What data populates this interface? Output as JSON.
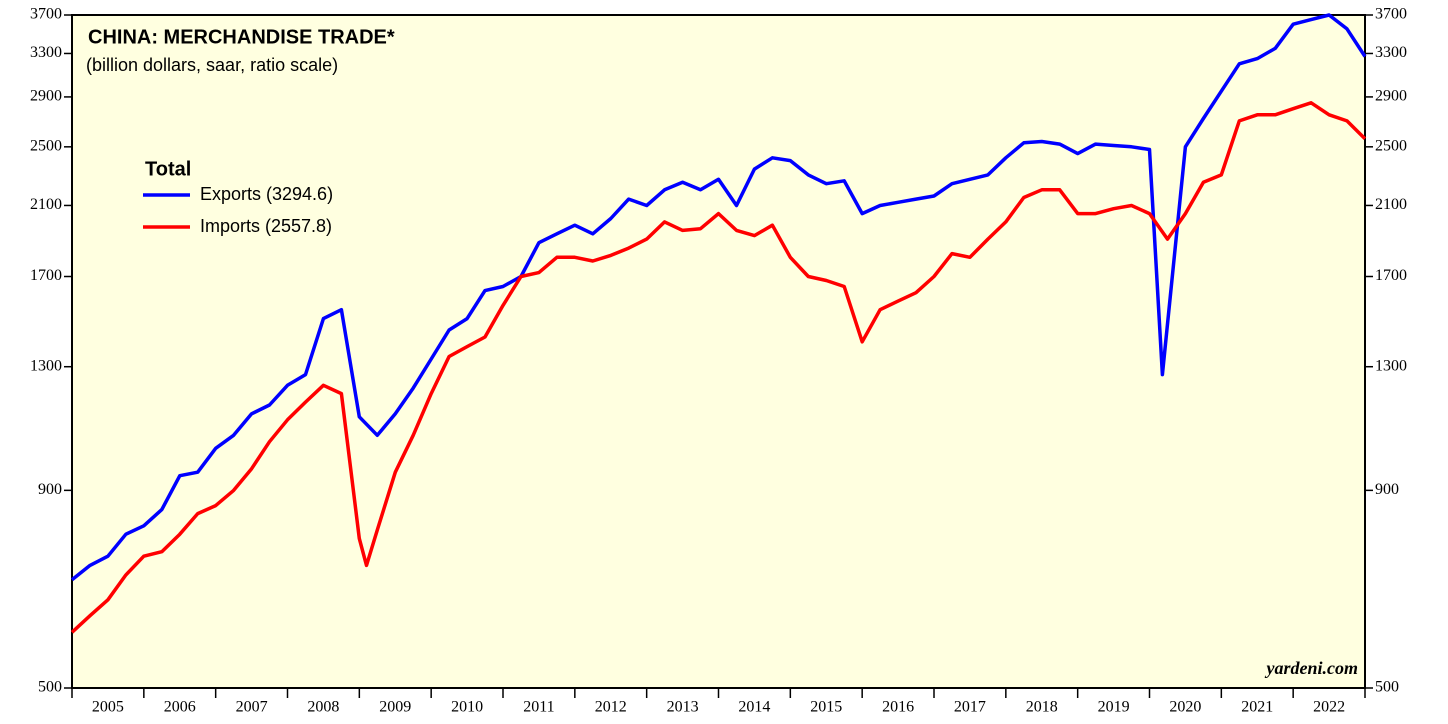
{
  "chart_data": {
    "type": "line",
    "title": "CHINA: MERCHANDISE TRADE*",
    "subtitle": "(billion dollars, saar, ratio scale)",
    "legend_title": "Total",
    "source": "yardeni.com",
    "log_scale": true,
    "legend": "upper left",
    "categories": [
      "2005",
      "2006",
      "2007",
      "2008",
      "2009",
      "2010",
      "2011",
      "2012",
      "2013",
      "2014",
      "2015",
      "2016",
      "2017",
      "2018",
      "2019",
      "2020",
      "2021",
      "2022"
    ],
    "xlim": [
      2005,
      2023
    ],
    "ylim": [
      500,
      3700
    ],
    "yticks": [
      500,
      900,
      1300,
      1700,
      2100,
      2500,
      2900,
      3300,
      3700
    ],
    "series": [
      {
        "name": "Exports (3294.6)",
        "color": "#0000ff",
        "x": [
          2005.0,
          2005.25,
          2005.5,
          2005.75,
          2006.0,
          2006.25,
          2006.5,
          2006.75,
          2007.0,
          2007.25,
          2007.5,
          2007.75,
          2008.0,
          2008.25,
          2008.5,
          2008.75,
          2009.0,
          2009.25,
          2009.5,
          2009.75,
          2010.0,
          2010.25,
          2010.5,
          2010.75,
          2011.0,
          2011.25,
          2011.5,
          2011.75,
          2012.0,
          2012.25,
          2012.5,
          2012.75,
          2013.0,
          2013.25,
          2013.5,
          2013.75,
          2014.0,
          2014.25,
          2014.5,
          2014.75,
          2015.0,
          2015.25,
          2015.5,
          2015.75,
          2016.0,
          2016.25,
          2016.5,
          2016.75,
          2017.0,
          2017.25,
          2017.5,
          2017.75,
          2018.0,
          2018.25,
          2018.5,
          2018.75,
          2019.0,
          2019.25,
          2019.5,
          2019.75,
          2020.0,
          2020.18,
          2020.5,
          2020.75,
          2021.0,
          2021.25,
          2021.5,
          2021.75,
          2022.0,
          2022.25,
          2022.5,
          2022.75,
          2023.0
        ],
        "values": [
          690,
          720,
          740,
          790,
          810,
          850,
          940,
          950,
          1020,
          1060,
          1130,
          1160,
          1230,
          1270,
          1500,
          1540,
          1120,
          1060,
          1130,
          1220,
          1330,
          1450,
          1500,
          1630,
          1650,
          1700,
          1880,
          1930,
          1980,
          1930,
          2020,
          2140,
          2100,
          2200,
          2250,
          2200,
          2270,
          2100,
          2340,
          2420,
          2400,
          2300,
          2240,
          2260,
          2050,
          2100,
          2120,
          2140,
          2160,
          2240,
          2270,
          2300,
          2420,
          2530,
          2540,
          2520,
          2450,
          2520,
          2510,
          2500,
          2480,
          1270,
          2500,
          2720,
          2950,
          3200,
          3250,
          3350,
          3600,
          3650,
          3700,
          3550,
          3270
        ]
      },
      {
        "name": "Imports (2557.8)",
        "color": "#ff0000",
        "x": [
          2005.0,
          2005.25,
          2005.5,
          2005.75,
          2006.0,
          2006.25,
          2006.5,
          2006.75,
          2007.0,
          2007.25,
          2007.5,
          2007.75,
          2008.0,
          2008.25,
          2008.5,
          2008.75,
          2009.0,
          2009.1,
          2009.25,
          2009.5,
          2009.75,
          2010.0,
          2010.25,
          2010.5,
          2010.75,
          2011.0,
          2011.25,
          2011.5,
          2011.75,
          2012.0,
          2012.25,
          2012.5,
          2012.75,
          2013.0,
          2013.25,
          2013.5,
          2013.75,
          2014.0,
          2014.25,
          2014.5,
          2014.75,
          2015.0,
          2015.25,
          2015.5,
          2015.75,
          2016.0,
          2016.25,
          2016.5,
          2016.75,
          2017.0,
          2017.25,
          2017.5,
          2017.75,
          2018.0,
          2018.25,
          2018.5,
          2018.75,
          2019.0,
          2019.25,
          2019.5,
          2019.75,
          2020.0,
          2020.25,
          2020.5,
          2020.75,
          2021.0,
          2021.25,
          2021.5,
          2021.75,
          2022.0,
          2022.25,
          2022.5,
          2022.75,
          2023.0
        ],
        "values": [
          590,
          620,
          650,
          700,
          740,
          750,
          790,
          840,
          860,
          900,
          960,
          1040,
          1110,
          1170,
          1230,
          1200,
          780,
          720,
          800,
          950,
          1060,
          1200,
          1340,
          1380,
          1420,
          1560,
          1700,
          1720,
          1800,
          1800,
          1780,
          1810,
          1850,
          1900,
          2000,
          1950,
          1960,
          2050,
          1950,
          1920,
          1980,
          1800,
          1700,
          1680,
          1650,
          1400,
          1540,
          1580,
          1620,
          1700,
          1820,
          1800,
          1900,
          2000,
          2150,
          2200,
          2200,
          2050,
          2050,
          2080,
          2100,
          2050,
          1900,
          2050,
          2250,
          2300,
          2700,
          2750,
          2750,
          2800,
          2850,
          2750,
          2700,
          2560
        ]
      }
    ]
  }
}
